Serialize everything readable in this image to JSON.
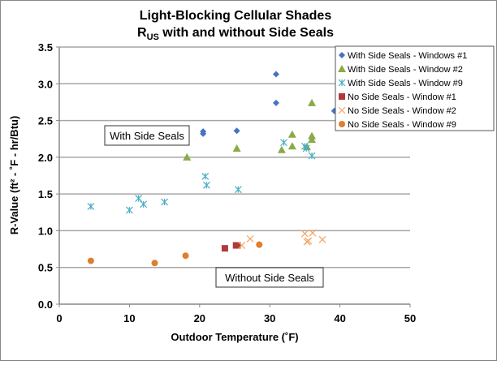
{
  "chart_data": {
    "type": "scatter",
    "title": "Light-Blocking Cellular Shades",
    "subtitle_main": "R",
    "subtitle_sub": "US",
    "subtitle_rest": " with and without Side Seals",
    "xlabel": "Outdoor Temperature (˚F)",
    "ylabel": "R-Value (ft² - ˚F - hr/Btu)",
    "xlim": [
      0,
      50
    ],
    "ylim": [
      0,
      3.5
    ],
    "xticks": [
      "0",
      "10",
      "20",
      "30",
      "40",
      "50"
    ],
    "yticks": [
      "0.0",
      "0.5",
      "1.0",
      "1.5",
      "2.0",
      "2.5",
      "3.0",
      "3.5"
    ],
    "grid": "horizontal",
    "legend_placement": "top-right",
    "annotations": [
      "With Side Seals",
      "Without Side Seals"
    ],
    "series": [
      {
        "name": "With Side Seals - Windows #1",
        "marker": "diamond",
        "color": "#4472C4",
        "points": [
          [
            20.5,
            2.35
          ],
          [
            20.5,
            2.32
          ],
          [
            25.3,
            2.36
          ],
          [
            30.9,
            3.13
          ],
          [
            30.9,
            2.74
          ],
          [
            39.2,
            2.63
          ]
        ]
      },
      {
        "name": "With Side Seals - Window #2",
        "marker": "triangle",
        "color": "#8AAA45",
        "points": [
          [
            18.2,
            2.0
          ],
          [
            25.3,
            2.12
          ],
          [
            31.7,
            2.1
          ],
          [
            33.2,
            2.31
          ],
          [
            33.2,
            2.15
          ],
          [
            35.3,
            2.14
          ],
          [
            36.0,
            2.74
          ],
          [
            36.0,
            2.29
          ],
          [
            36.0,
            2.24
          ]
        ]
      },
      {
        "name": "With Side Seals - Window #9",
        "marker": "star",
        "color": "#4BACC6",
        "points": [
          [
            4.5,
            1.33
          ],
          [
            10.0,
            1.28
          ],
          [
            11.3,
            1.44
          ],
          [
            12.0,
            1.36
          ],
          [
            15.0,
            1.39
          ],
          [
            20.8,
            1.74
          ],
          [
            21.0,
            1.62
          ],
          [
            25.5,
            1.56
          ],
          [
            32.0,
            2.2
          ],
          [
            35.0,
            2.15
          ],
          [
            35.2,
            2.12
          ],
          [
            36.0,
            2.02
          ]
        ]
      },
      {
        "name": "No Side Seals - Window #1",
        "marker": "square",
        "color": "#B03A3A",
        "points": [
          [
            23.6,
            0.76
          ],
          [
            25.2,
            0.8
          ],
          [
            25.4,
            0.8
          ]
        ]
      },
      {
        "name": "No Side Seals - Window #2",
        "marker": "x",
        "color": "#F4A460",
        "points": [
          [
            26.0,
            0.8
          ],
          [
            27.2,
            0.89
          ],
          [
            35.0,
            0.96
          ],
          [
            35.5,
            0.86
          ],
          [
            36.1,
            0.97
          ],
          [
            35.3,
            0.85
          ],
          [
            37.5,
            0.88
          ]
        ]
      },
      {
        "name": "No Side Seals - Window #9",
        "marker": "circle",
        "color": "#E07E2E",
        "points": [
          [
            4.5,
            0.59
          ],
          [
            13.6,
            0.56
          ],
          [
            18.0,
            0.66
          ],
          [
            28.5,
            0.81
          ]
        ]
      }
    ]
  }
}
